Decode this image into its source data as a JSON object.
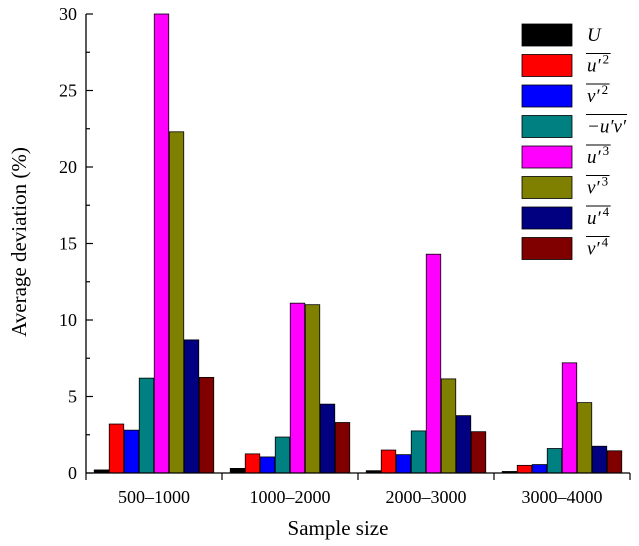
{
  "chart_data": {
    "type": "bar",
    "xlabel": "Sample size",
    "ylabel": "Average deviation (%)",
    "ylim": [
      0,
      30
    ],
    "yticks": [
      0,
      5,
      10,
      15,
      20,
      25,
      30
    ],
    "categories": [
      "500–1000",
      "1000–2000",
      "2000–3000",
      "3000–4000"
    ],
    "legend_position": "top-right",
    "series": [
      {
        "name": "U",
        "legend": {
          "base": "U",
          "overline": false,
          "sup": ""
        },
        "color": "#000000",
        "values": [
          0.2,
          0.3,
          0.15,
          0.1
        ]
      },
      {
        "name": "u'2",
        "legend": {
          "base": "u′",
          "overline": true,
          "sup": "2"
        },
        "color": "#ff0000",
        "values": [
          3.2,
          1.25,
          1.5,
          0.5
        ]
      },
      {
        "name": "v'2",
        "legend": {
          "base": "v′",
          "overline": true,
          "sup": "2"
        },
        "color": "#0000ff",
        "values": [
          2.8,
          1.05,
          1.2,
          0.55
        ]
      },
      {
        "name": "-u'v'",
        "legend": {
          "base": "−u′v′",
          "overline": true,
          "sup": ""
        },
        "color": "#008080",
        "values": [
          6.2,
          2.35,
          2.75,
          1.6
        ]
      },
      {
        "name": "u'3",
        "legend": {
          "base": "u′",
          "overline": true,
          "sup": "3"
        },
        "color": "#ff00ff",
        "values": [
          30,
          11.1,
          14.3,
          7.2
        ]
      },
      {
        "name": "v'3",
        "legend": {
          "base": "v′",
          "overline": true,
          "sup": "3"
        },
        "color": "#808000",
        "values": [
          22.3,
          11.0,
          6.15,
          4.6
        ]
      },
      {
        "name": "u'4",
        "legend": {
          "base": "u′",
          "overline": true,
          "sup": "4"
        },
        "color": "#000080",
        "values": [
          8.7,
          4.5,
          3.75,
          1.75
        ]
      },
      {
        "name": "v'4",
        "legend": {
          "base": "v′",
          "overline": true,
          "sup": "4"
        },
        "color": "#800000",
        "values": [
          6.25,
          3.3,
          2.7,
          1.45
        ]
      }
    ]
  }
}
